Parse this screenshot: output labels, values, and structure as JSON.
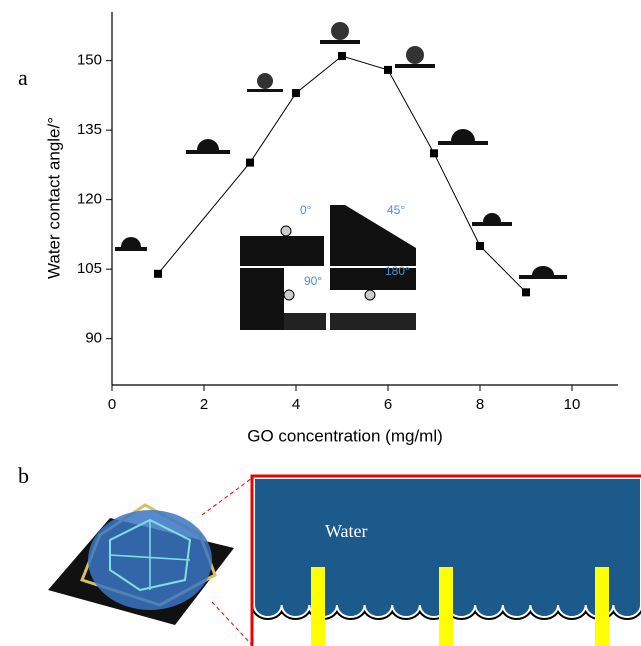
{
  "chart_data": {
    "type": "line",
    "panel_label": "a",
    "xlabel": "GO concentration (mg/ml)",
    "ylabel": "Water contact angle/°",
    "x": [
      1,
      3,
      4,
      5,
      6,
      7,
      8,
      9
    ],
    "values": [
      104,
      128,
      143,
      151,
      148,
      130,
      110,
      100
    ],
    "color": "#000000",
    "xlim": [
      0,
      11
    ],
    "ylim": [
      80,
      160.5
    ],
    "xticks": [
      0,
      2,
      4,
      6,
      8,
      10
    ],
    "yticks": [
      90,
      105,
      120,
      135,
      150
    ],
    "inset_labels": [
      "0°",
      "45°",
      "90°",
      "180°"
    ]
  },
  "figure_b": {
    "panel_label": "b",
    "water_label": "Water"
  }
}
